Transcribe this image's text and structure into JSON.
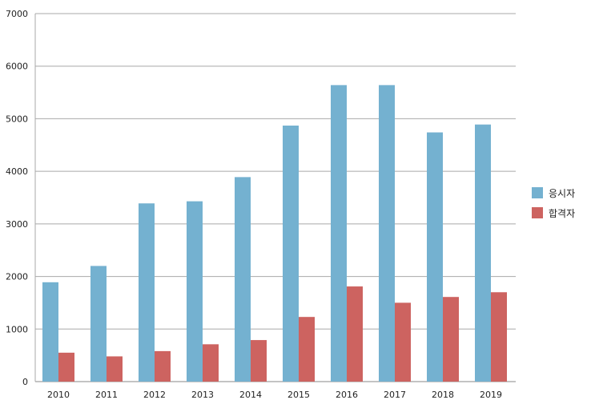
{
  "chart_data": {
    "type": "bar",
    "title": "",
    "xlabel": "",
    "ylabel": "",
    "categories": [
      "2010",
      "2011",
      "2012",
      "2013",
      "2014",
      "2015",
      "2016",
      "2017",
      "2018",
      "2019"
    ],
    "series": [
      {
        "name": "응시자",
        "color": "#74b1d0",
        "values": [
          1890,
          2200,
          3390,
          3430,
          3890,
          4870,
          5640,
          5640,
          4740,
          4890
        ]
      },
      {
        "name": "합격자",
        "color": "#cd6360",
        "values": [
          550,
          480,
          580,
          710,
          790,
          1230,
          1810,
          1500,
          1610,
          1700
        ]
      }
    ],
    "ylim": [
      0,
      7000
    ],
    "yticks": [
      "0",
      "1000",
      "2000",
      "3000",
      "4000",
      "5000",
      "6000",
      "7000"
    ],
    "grid": true,
    "legend_position": "right"
  }
}
